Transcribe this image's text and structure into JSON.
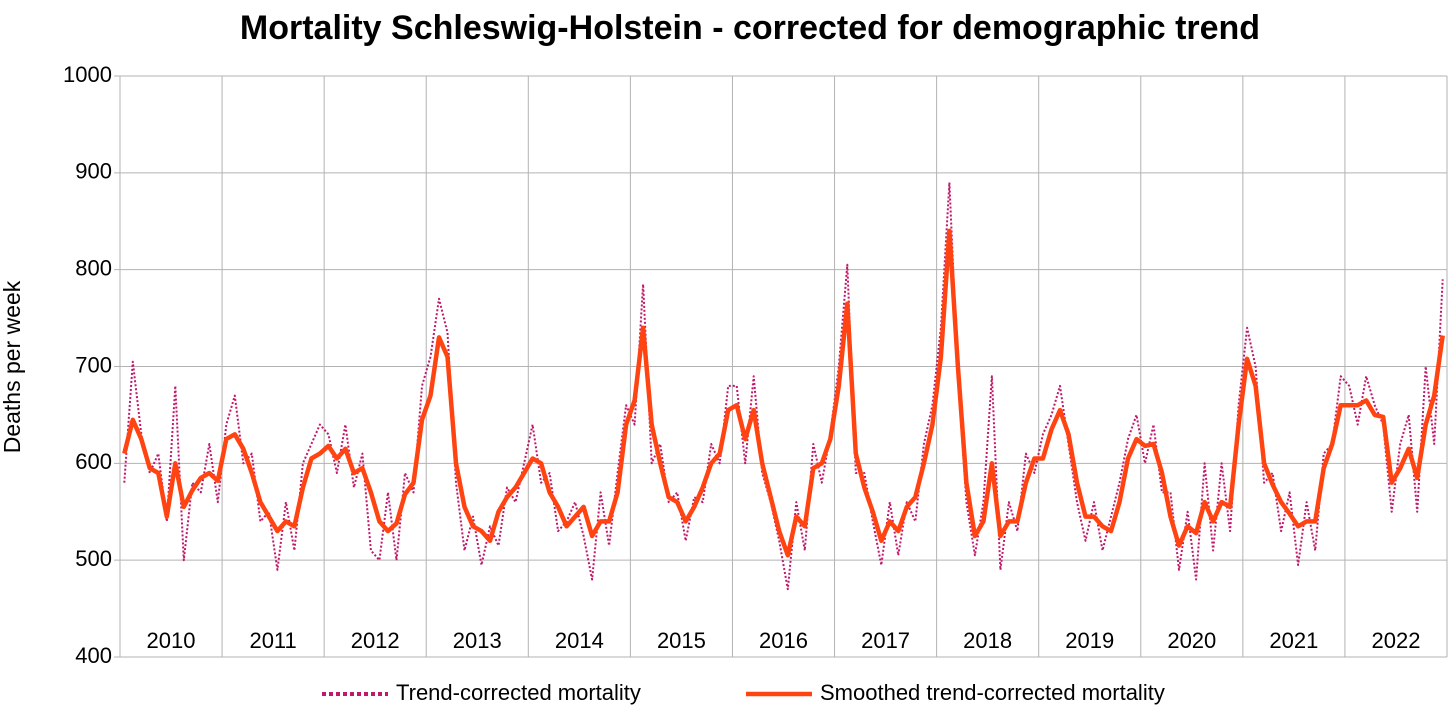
{
  "chart_data": {
    "type": "line",
    "title": "Mortality Schleswig-Holstein - corrected for demographic trend",
    "y_label": "Deaths per week",
    "categories": [
      null,
      null,
      null,
      null,
      null,
      null,
      "2010",
      null,
      null,
      null,
      null,
      null,
      null,
      null,
      null,
      null,
      null,
      null,
      "2011",
      null,
      null,
      null,
      null,
      null,
      null,
      null,
      null,
      null,
      null,
      null,
      "2012",
      null,
      null,
      null,
      null,
      null,
      null,
      null,
      null,
      null,
      null,
      null,
      "2013",
      null,
      null,
      null,
      null,
      null,
      null,
      null,
      null,
      null,
      null,
      null,
      "2014",
      null,
      null,
      null,
      null,
      null,
      null,
      null,
      null,
      null,
      null,
      null,
      "2015",
      null,
      null,
      null,
      null,
      null,
      null,
      null,
      null,
      null,
      null,
      null,
      "2016",
      null,
      null,
      null,
      null,
      null,
      null,
      null,
      null,
      null,
      null,
      null,
      "2017",
      null,
      null,
      null,
      null,
      null,
      null,
      null,
      null,
      null,
      null,
      null,
      "2018",
      null,
      null,
      null,
      null,
      null,
      null,
      null,
      null,
      null,
      null,
      null,
      "2019",
      null,
      null,
      null,
      null,
      null,
      null,
      null,
      null,
      null,
      null,
      null,
      "2020",
      null,
      null,
      null,
      null,
      null,
      null,
      null,
      null,
      null,
      null,
      null,
      "2021",
      null,
      null,
      null,
      null,
      null,
      null,
      null,
      null,
      null,
      null,
      null,
      "2022",
      null,
      null,
      null,
      null,
      null
    ],
    "series": [
      {
        "name": "Trend-corrected mortality",
        "color": "#c0186a",
        "dash": true,
        "values": [
          580,
          705,
          630,
          590,
          610,
          540,
          680,
          500,
          580,
          570,
          620,
          560,
          640,
          670,
          600,
          610,
          540,
          550,
          490,
          560,
          510,
          600,
          620,
          640,
          630,
          590,
          640,
          575,
          610,
          510,
          500,
          570,
          500,
          590,
          570,
          680,
          710,
          770,
          735,
          580,
          510,
          545,
          495,
          535,
          515,
          575,
          560,
          600,
          640,
          580,
          590,
          530,
          540,
          560,
          525,
          480,
          570,
          515,
          590,
          660,
          640,
          785,
          600,
          620,
          560,
          570,
          520,
          565,
          560,
          620,
          600,
          680,
          680,
          600,
          690,
          590,
          560,
          520,
          470,
          560,
          510,
          620,
          580,
          630,
          700,
          805,
          590,
          590,
          540,
          495,
          560,
          505,
          560,
          540,
          620,
          660,
          740,
          890,
          690,
          560,
          505,
          560,
          690,
          490,
          560,
          530,
          610,
          590,
          630,
          650,
          680,
          620,
          560,
          520,
          560,
          510,
          545,
          580,
          625,
          650,
          600,
          640,
          570,
          570,
          490,
          550,
          480,
          600,
          510,
          600,
          530,
          660,
          740,
          700,
          580,
          590,
          530,
          570,
          495,
          560,
          510,
          610,
          620,
          690,
          680,
          640,
          690,
          660,
          640,
          550,
          620,
          650,
          550,
          700,
          620,
          790
        ]
      },
      {
        "name": "Smoothed trend-corrected mortality",
        "color": "#ff4412",
        "dash": false,
        "values": [
          610,
          645,
          625,
          595,
          590,
          545,
          600,
          555,
          572,
          585,
          590,
          582,
          625,
          630,
          615,
          590,
          560,
          545,
          530,
          540,
          535,
          575,
          605,
          610,
          618,
          605,
          615,
          590,
          595,
          570,
          540,
          530,
          538,
          568,
          580,
          645,
          670,
          730,
          710,
          600,
          555,
          535,
          530,
          520,
          550,
          565,
          575,
          590,
          605,
          600,
          570,
          555,
          535,
          545,
          555,
          525,
          540,
          540,
          570,
          640,
          665,
          740,
          640,
          600,
          565,
          560,
          540,
          555,
          575,
          600,
          610,
          655,
          660,
          625,
          655,
          600,
          565,
          530,
          505,
          545,
          535,
          595,
          600,
          625,
          680,
          765,
          610,
          575,
          550,
          520,
          540,
          530,
          555,
          565,
          600,
          640,
          710,
          840,
          700,
          580,
          525,
          540,
          600,
          525,
          540,
          540,
          580,
          605,
          605,
          635,
          655,
          630,
          580,
          545,
          545,
          535,
          530,
          560,
          605,
          625,
          618,
          620,
          590,
          545,
          515,
          535,
          528,
          560,
          540,
          560,
          555,
          640,
          708,
          680,
          600,
          578,
          560,
          548,
          535,
          540,
          540,
          595,
          620,
          660,
          660,
          660,
          665,
          650,
          648,
          580,
          595,
          615,
          585,
          640,
          670,
          732
        ]
      }
    ],
    "ylim": [
      400,
      1000
    ],
    "yticks": [
      400,
      500,
      600,
      700,
      800,
      900,
      1000
    ],
    "grid": true,
    "legend": "bottom"
  }
}
